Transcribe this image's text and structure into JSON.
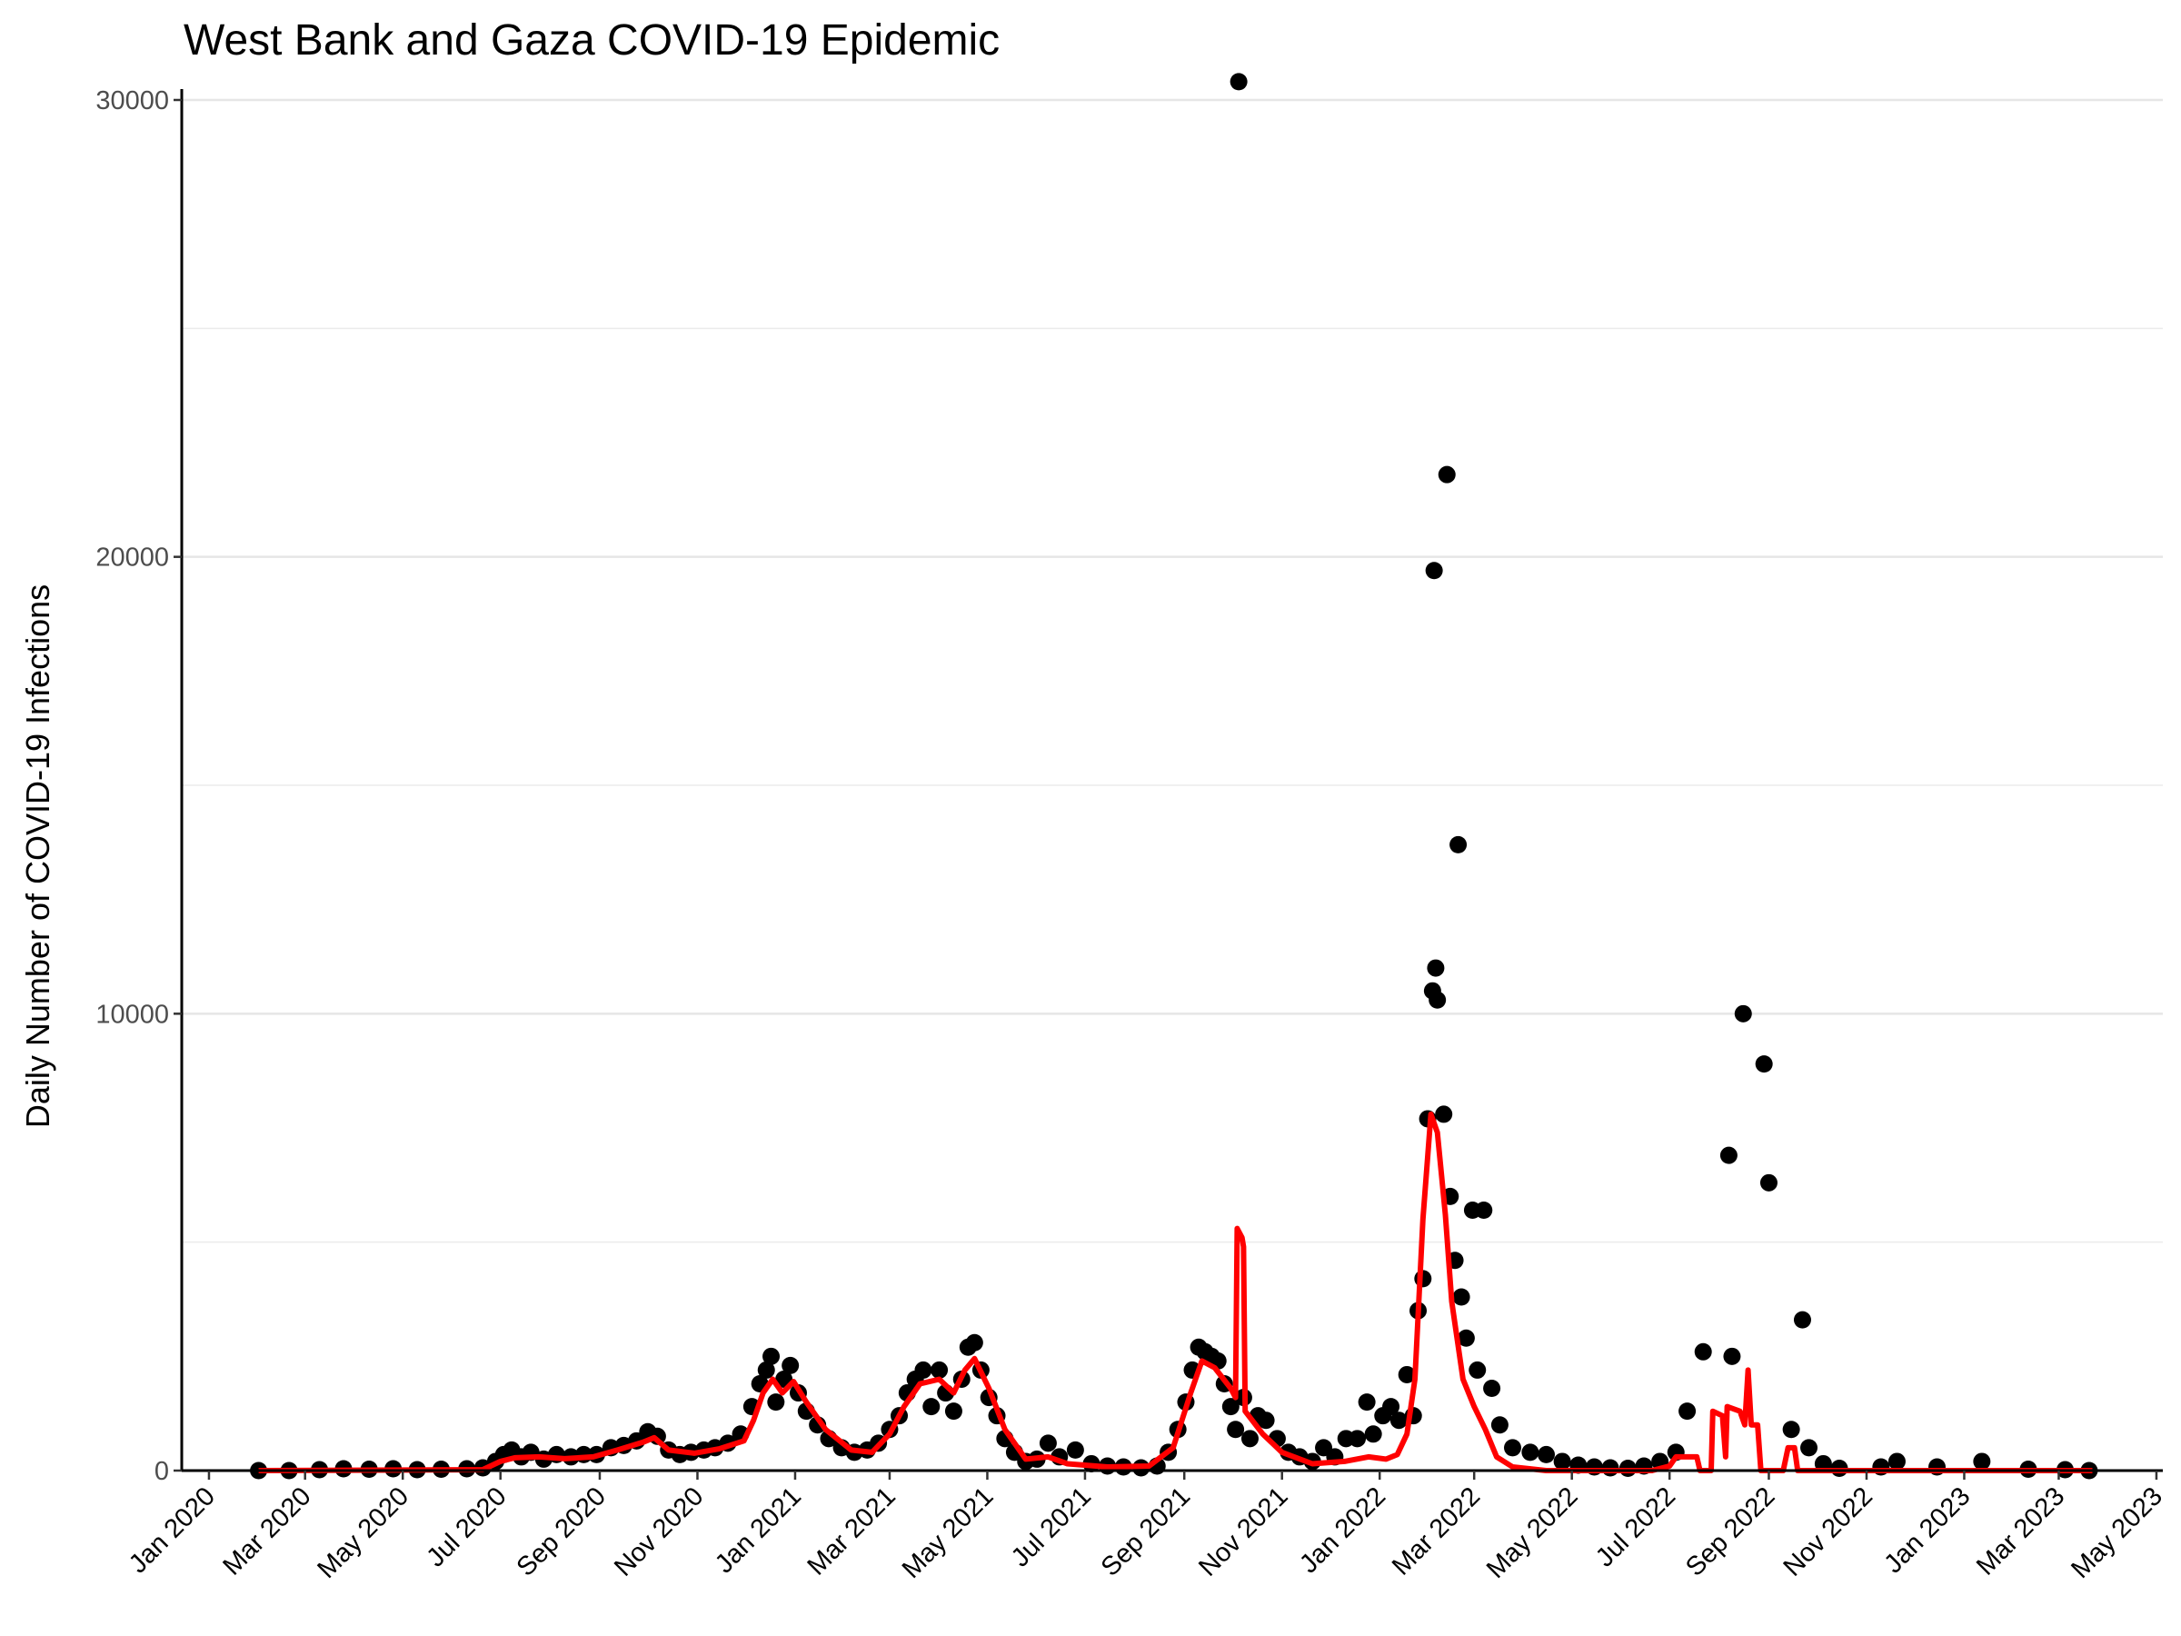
{
  "chart_data": {
    "type": "scatter",
    "title": "West Bank and Gaza COVID-19 Epidemic",
    "xlabel": "",
    "ylabel": "Daily Number of COVID-19 Infections",
    "ylim": [
      0,
      30000
    ],
    "xlim": [
      "2019-12-15",
      "2023-05-05"
    ],
    "y_ticks": [
      0,
      10000,
      20000,
      30000
    ],
    "y_tick_labels": [
      "0",
      "10000",
      "20000",
      "30000"
    ],
    "y_minor_gridlines": [
      5000,
      15000,
      25000
    ],
    "x_ticks": [
      "2020-01-01",
      "2020-03-01",
      "2020-05-01",
      "2020-07-01",
      "2020-09-01",
      "2020-11-01",
      "2021-01-01",
      "2021-03-01",
      "2021-05-01",
      "2021-07-01",
      "2021-09-01",
      "2021-11-01",
      "2022-01-01",
      "2022-03-01",
      "2022-05-01",
      "2022-07-01",
      "2022-09-01",
      "2022-11-01",
      "2023-01-01",
      "2023-03-01",
      "2023-05-01"
    ],
    "x_tick_labels": [
      "Jan 2020",
      "Mar 2020",
      "May 2020",
      "Jul 2020",
      "Sep 2020",
      "Nov 2020",
      "Jan 2021",
      "Mar 2021",
      "May 2021",
      "Jul 2021",
      "Sep 2021",
      "Nov 2021",
      "Jan 2022",
      "Mar 2022",
      "May 2022",
      "Jul 2022",
      "Sep 2022",
      "Nov 2022",
      "Jan 2023",
      "Mar 2023",
      "May 2023"
    ],
    "grid": "horizontal major and minor",
    "legend": "none",
    "series": [
      {
        "kind": "points",
        "color": "#000000",
        "points": [
          [
            "2020-02-01",
            0
          ],
          [
            "2020-02-20",
            0
          ],
          [
            "2020-03-10",
            20
          ],
          [
            "2020-03-25",
            40
          ],
          [
            "2020-04-10",
            30
          ],
          [
            "2020-04-25",
            40
          ],
          [
            "2020-05-10",
            20
          ],
          [
            "2020-05-25",
            30
          ],
          [
            "2020-06-10",
            40
          ],
          [
            "2020-06-20",
            60
          ],
          [
            "2020-06-28",
            200
          ],
          [
            "2020-07-03",
            350
          ],
          [
            "2020-07-08",
            450
          ],
          [
            "2020-07-14",
            300
          ],
          [
            "2020-07-20",
            400
          ],
          [
            "2020-07-28",
            250
          ],
          [
            "2020-08-05",
            350
          ],
          [
            "2020-08-14",
            300
          ],
          [
            "2020-08-22",
            350
          ],
          [
            "2020-08-30",
            350
          ],
          [
            "2020-09-08",
            500
          ],
          [
            "2020-09-16",
            550
          ],
          [
            "2020-09-24",
            650
          ],
          [
            "2020-10-01",
            850
          ],
          [
            "2020-10-07",
            750
          ],
          [
            "2020-10-14",
            450
          ],
          [
            "2020-10-21",
            350
          ],
          [
            "2020-10-28",
            400
          ],
          [
            "2020-11-05",
            450
          ],
          [
            "2020-11-12",
            500
          ],
          [
            "2020-11-20",
            600
          ],
          [
            "2020-11-28",
            800
          ],
          [
            "2020-12-05",
            1400
          ],
          [
            "2020-12-10",
            1900
          ],
          [
            "2020-12-14",
            2200
          ],
          [
            "2020-12-17",
            2500
          ],
          [
            "2020-12-20",
            1500
          ],
          [
            "2020-12-25",
            2000
          ],
          [
            "2020-12-29",
            2300
          ],
          [
            "2021-01-03",
            1700
          ],
          [
            "2021-01-08",
            1300
          ],
          [
            "2021-01-15",
            1000
          ],
          [
            "2021-01-22",
            700
          ],
          [
            "2021-01-30",
            500
          ],
          [
            "2021-02-07",
            400
          ],
          [
            "2021-02-15",
            450
          ],
          [
            "2021-02-22",
            600
          ],
          [
            "2021-03-01",
            900
          ],
          [
            "2021-03-07",
            1200
          ],
          [
            "2021-03-12",
            1700
          ],
          [
            "2021-03-17",
            2000
          ],
          [
            "2021-03-22",
            2200
          ],
          [
            "2021-03-27",
            1400
          ],
          [
            "2021-04-01",
            2200
          ],
          [
            "2021-04-05",
            1700
          ],
          [
            "2021-04-10",
            1300
          ],
          [
            "2021-04-15",
            2000
          ],
          [
            "2021-04-19",
            2700
          ],
          [
            "2021-04-23",
            2800
          ],
          [
            "2021-04-27",
            2200
          ],
          [
            "2021-05-02",
            1600
          ],
          [
            "2021-05-07",
            1200
          ],
          [
            "2021-05-12",
            700
          ],
          [
            "2021-05-18",
            400
          ],
          [
            "2021-05-25",
            200
          ],
          [
            "2021-06-01",
            250
          ],
          [
            "2021-06-08",
            600
          ],
          [
            "2021-06-15",
            300
          ],
          [
            "2021-06-25",
            450
          ],
          [
            "2021-07-05",
            150
          ],
          [
            "2021-07-15",
            100
          ],
          [
            "2021-07-25",
            80
          ],
          [
            "2021-08-05",
            60
          ],
          [
            "2021-08-15",
            100
          ],
          [
            "2021-08-22",
            400
          ],
          [
            "2021-08-28",
            900
          ],
          [
            "2021-09-02",
            1500
          ],
          [
            "2021-09-06",
            2200
          ],
          [
            "2021-09-10",
            2700
          ],
          [
            "2021-09-14",
            2600
          ],
          [
            "2021-09-18",
            2500
          ],
          [
            "2021-09-22",
            2400
          ],
          [
            "2021-09-26",
            1900
          ],
          [
            "2021-09-30",
            1400
          ],
          [
            "2021-10-03",
            900
          ],
          [
            "2021-10-05",
            30400
          ],
          [
            "2021-10-08",
            1600
          ],
          [
            "2021-10-12",
            700
          ],
          [
            "2021-10-17",
            1200
          ],
          [
            "2021-10-22",
            1100
          ],
          [
            "2021-10-29",
            700
          ],
          [
            "2021-11-05",
            400
          ],
          [
            "2021-11-12",
            300
          ],
          [
            "2021-11-20",
            200
          ],
          [
            "2021-11-27",
            500
          ],
          [
            "2021-12-04",
            300
          ],
          [
            "2021-12-11",
            700
          ],
          [
            "2021-12-18",
            700
          ],
          [
            "2021-12-24",
            1500
          ],
          [
            "2021-12-28",
            800
          ],
          [
            "2022-01-03",
            1200
          ],
          [
            "2022-01-08",
            1400
          ],
          [
            "2022-01-13",
            1100
          ],
          [
            "2022-01-18",
            2100
          ],
          [
            "2022-01-22",
            1200
          ],
          [
            "2022-01-25",
            3500
          ],
          [
            "2022-01-28",
            4200
          ],
          [
            "2022-01-31",
            7700
          ],
          [
            "2022-02-03",
            10500
          ],
          [
            "2022-02-04",
            19700
          ],
          [
            "2022-02-05",
            11000
          ],
          [
            "2022-02-06",
            10300
          ],
          [
            "2022-02-10",
            7800
          ],
          [
            "2022-02-12",
            21800
          ],
          [
            "2022-02-14",
            6000
          ],
          [
            "2022-02-17",
            4600
          ],
          [
            "2022-02-19",
            13700
          ],
          [
            "2022-02-21",
            3800
          ],
          [
            "2022-02-24",
            2900
          ],
          [
            "2022-02-28",
            5700
          ],
          [
            "2022-03-03",
            2200
          ],
          [
            "2022-03-07",
            5700
          ],
          [
            "2022-03-12",
            1800
          ],
          [
            "2022-03-17",
            1000
          ],
          [
            "2022-03-25",
            500
          ],
          [
            "2022-04-05",
            400
          ],
          [
            "2022-04-15",
            350
          ],
          [
            "2022-04-25",
            200
          ],
          [
            "2022-05-05",
            120
          ],
          [
            "2022-05-15",
            80
          ],
          [
            "2022-05-25",
            60
          ],
          [
            "2022-06-05",
            50
          ],
          [
            "2022-06-15",
            100
          ],
          [
            "2022-06-25",
            200
          ],
          [
            "2022-07-05",
            400
          ],
          [
            "2022-07-12",
            1300
          ],
          [
            "2022-07-22",
            2600
          ],
          [
            "2022-08-07",
            6900
          ],
          [
            "2022-08-09",
            2500
          ],
          [
            "2022-08-16",
            10000
          ],
          [
            "2022-08-29",
            8900
          ],
          [
            "2022-09-01",
            6300
          ],
          [
            "2022-09-15",
            900
          ],
          [
            "2022-09-22",
            3300
          ],
          [
            "2022-09-26",
            500
          ],
          [
            "2022-10-05",
            150
          ],
          [
            "2022-10-15",
            50
          ],
          [
            "2022-11-10",
            80
          ],
          [
            "2022-11-20",
            200
          ],
          [
            "2022-12-15",
            80
          ],
          [
            "2023-01-12",
            200
          ],
          [
            "2023-02-10",
            30
          ],
          [
            "2023-03-05",
            20
          ],
          [
            "2023-03-20",
            0
          ]
        ]
      },
      {
        "kind": "line",
        "color": "#ff0000",
        "points": [
          [
            "2020-02-01",
            0
          ],
          [
            "2020-06-20",
            20
          ],
          [
            "2020-07-01",
            200
          ],
          [
            "2020-07-10",
            280
          ],
          [
            "2020-07-25",
            300
          ],
          [
            "2020-08-10",
            260
          ],
          [
            "2020-08-28",
            300
          ],
          [
            "2020-09-12",
            450
          ],
          [
            "2020-09-28",
            620
          ],
          [
            "2020-10-05",
            720
          ],
          [
            "2020-10-14",
            450
          ],
          [
            "2020-10-30",
            380
          ],
          [
            "2020-11-15",
            480
          ],
          [
            "2020-11-30",
            650
          ],
          [
            "2020-12-06",
            1100
          ],
          [
            "2020-12-12",
            1700
          ],
          [
            "2020-12-18",
            2000
          ],
          [
            "2020-12-24",
            1700
          ],
          [
            "2020-12-31",
            1950
          ],
          [
            "2021-01-08",
            1500
          ],
          [
            "2021-01-20",
            900
          ],
          [
            "2021-02-05",
            450
          ],
          [
            "2021-02-18",
            400
          ],
          [
            "2021-03-01",
            800
          ],
          [
            "2021-03-10",
            1400
          ],
          [
            "2021-03-20",
            1900
          ],
          [
            "2021-04-01",
            2000
          ],
          [
            "2021-04-10",
            1700
          ],
          [
            "2021-04-17",
            2200
          ],
          [
            "2021-04-23",
            2450
          ],
          [
            "2021-05-02",
            1800
          ],
          [
            "2021-05-12",
            900
          ],
          [
            "2021-05-25",
            250
          ],
          [
            "2021-06-08",
            300
          ],
          [
            "2021-06-20",
            150
          ],
          [
            "2021-07-15",
            80
          ],
          [
            "2021-08-10",
            100
          ],
          [
            "2021-08-25",
            500
          ],
          [
            "2021-09-05",
            1700
          ],
          [
            "2021-09-12",
            2400
          ],
          [
            "2021-09-20",
            2250
          ],
          [
            "2021-09-30",
            1800
          ],
          [
            "2021-10-03",
            1600
          ],
          [
            "2021-10-04",
            5300
          ],
          [
            "2021-10-07",
            5100
          ],
          [
            "2021-10-08",
            4900
          ],
          [
            "2021-10-09",
            1300
          ],
          [
            "2021-10-20",
            800
          ],
          [
            "2021-11-01",
            400
          ],
          [
            "2021-11-20",
            150
          ],
          [
            "2021-12-10",
            200
          ],
          [
            "2021-12-25",
            300
          ],
          [
            "2022-01-05",
            250
          ],
          [
            "2022-01-12",
            350
          ],
          [
            "2022-01-18",
            800
          ],
          [
            "2022-01-23",
            2000
          ],
          [
            "2022-01-28",
            5500
          ],
          [
            "2022-02-02",
            7800
          ],
          [
            "2022-02-06",
            7400
          ],
          [
            "2022-02-11",
            5600
          ],
          [
            "2022-02-15",
            3700
          ],
          [
            "2022-02-22",
            2000
          ],
          [
            "2022-03-01",
            1400
          ],
          [
            "2022-03-08",
            900
          ],
          [
            "2022-03-15",
            300
          ],
          [
            "2022-03-25",
            80
          ],
          [
            "2022-04-15",
            0
          ],
          [
            "2022-06-20",
            0
          ],
          [
            "2022-07-01",
            100
          ],
          [
            "2022-07-05",
            300
          ],
          [
            "2022-07-18",
            300
          ],
          [
            "2022-07-20",
            0
          ],
          [
            "2022-07-27",
            0
          ],
          [
            "2022-07-28",
            1300
          ],
          [
            "2022-08-03",
            1200
          ],
          [
            "2022-08-05",
            300
          ],
          [
            "2022-08-06",
            1400
          ],
          [
            "2022-08-14",
            1300
          ],
          [
            "2022-08-17",
            1000
          ],
          [
            "2022-08-19",
            2200
          ],
          [
            "2022-08-21",
            1000
          ],
          [
            "2022-08-25",
            1000
          ],
          [
            "2022-08-27",
            0
          ],
          [
            "2022-09-10",
            0
          ],
          [
            "2022-09-13",
            500
          ],
          [
            "2022-09-17",
            500
          ],
          [
            "2022-09-19",
            0
          ],
          [
            "2023-03-22",
            0
          ]
        ]
      }
    ]
  }
}
